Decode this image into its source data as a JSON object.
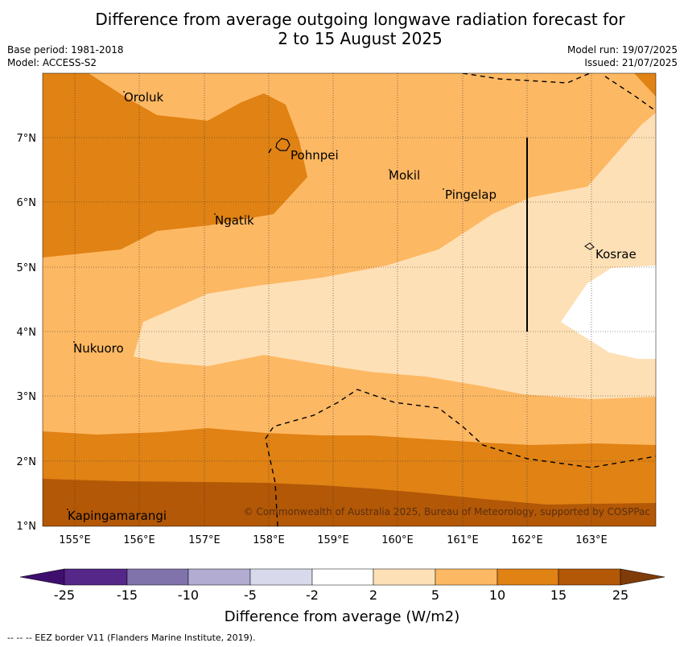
{
  "title_line1": "Difference from average outgoing longwave radiation forecast for",
  "title_line2": "2 to 15 August 2025",
  "base_period": "Base period: 1981-2018",
  "model": "Model: ACCESS-S2",
  "model_run": "Model run: 19/07/2025",
  "issued": "Issued: 21/07/2025",
  "map": {
    "x_ticks": [
      "155°E",
      "156°E",
      "157°E",
      "158°E",
      "159°E",
      "160°E",
      "161°E",
      "162°E",
      "163°E"
    ],
    "y_ticks": [
      "7°N",
      "6°N",
      "5°N",
      "4°N",
      "3°N",
      "2°N",
      "1°N"
    ],
    "places": [
      "Oroluk",
      "Pohnpei",
      "Mokil",
      "Pingelap",
      "Ngatik",
      "Kosrae",
      "Nukuoro",
      "Kapingamarangi"
    ],
    "copyright": "© Commonwealth of Australia 2025, Bureau of Meteorology, supported by COSPPac"
  },
  "colorbar": {
    "ticks": [
      "-25",
      "-15",
      "-10",
      "-5",
      "-2",
      "2",
      "5",
      "10",
      "15",
      "25"
    ],
    "label": "Difference from average (W/m2)",
    "colors": [
      "#3f0f6e",
      "#542788",
      "#8073ac",
      "#b2abd2",
      "#d8daeb",
      "#ffffff",
      "#fee0b6",
      "#fdb863",
      "#e08214",
      "#b35806",
      "#7f3b08"
    ]
  },
  "footnote": "--  --  -- EEZ border V11 (Flanders Marine Institute, 2019)."
}
